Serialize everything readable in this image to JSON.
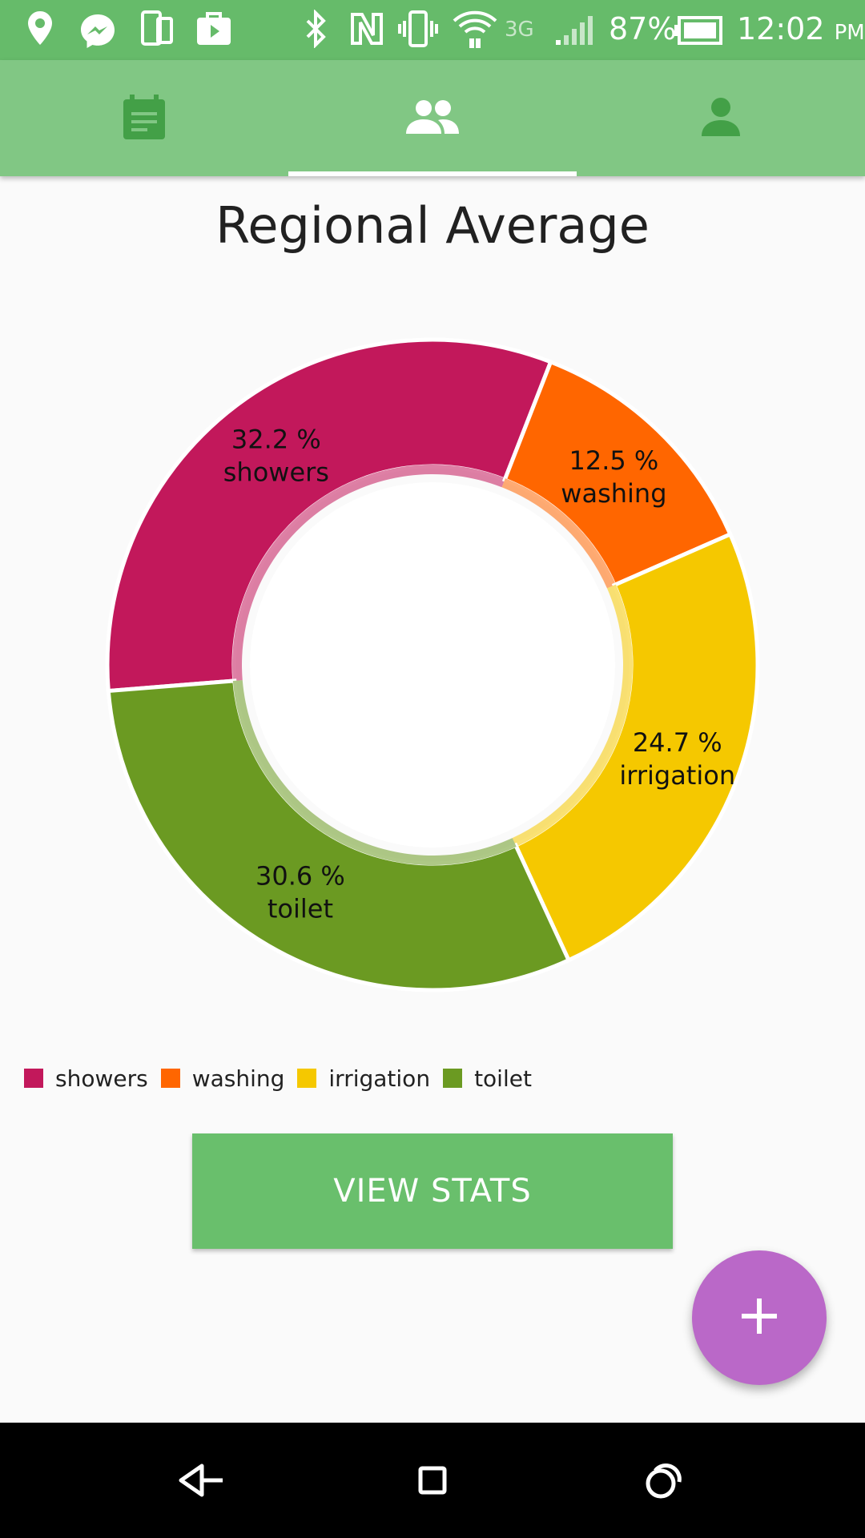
{
  "status_bar": {
    "battery_percent": "87%",
    "network_type": "3G",
    "time": "12:02",
    "time_period": "PM",
    "icons": [
      "location-icon",
      "messenger-icon",
      "device-switch-icon",
      "play-store-icon",
      "bluetooth-icon",
      "nfc-icon",
      "vibrate-icon",
      "wifi-icon",
      "signal-icon",
      "battery-icon"
    ]
  },
  "tabs": [
    {
      "icon": "calendar-icon",
      "selected": false
    },
    {
      "icon": "group-icon",
      "selected": true
    },
    {
      "icon": "person-icon",
      "selected": false
    }
  ],
  "title": "Regional Average",
  "chart_data": {
    "type": "pie",
    "donut": true,
    "title": "Regional Average",
    "categories": [
      "showers",
      "washing",
      "irrigation",
      "toilet"
    ],
    "values": [
      32.2,
      12.5,
      24.7,
      30.6
    ],
    "labels": [
      "32.2 %",
      "12.5 %",
      "24.7 %",
      "30.6 %"
    ],
    "colors": [
      "#c2185b",
      "#ff6600",
      "#f5c800",
      "#6b9a22"
    ],
    "legend_position": "bottom-left"
  },
  "button": {
    "label": "VIEW STATS"
  },
  "fab": {
    "label": "+"
  },
  "nav_bar": {
    "icons": [
      "back-icon",
      "home-icon",
      "recents-icon"
    ]
  }
}
